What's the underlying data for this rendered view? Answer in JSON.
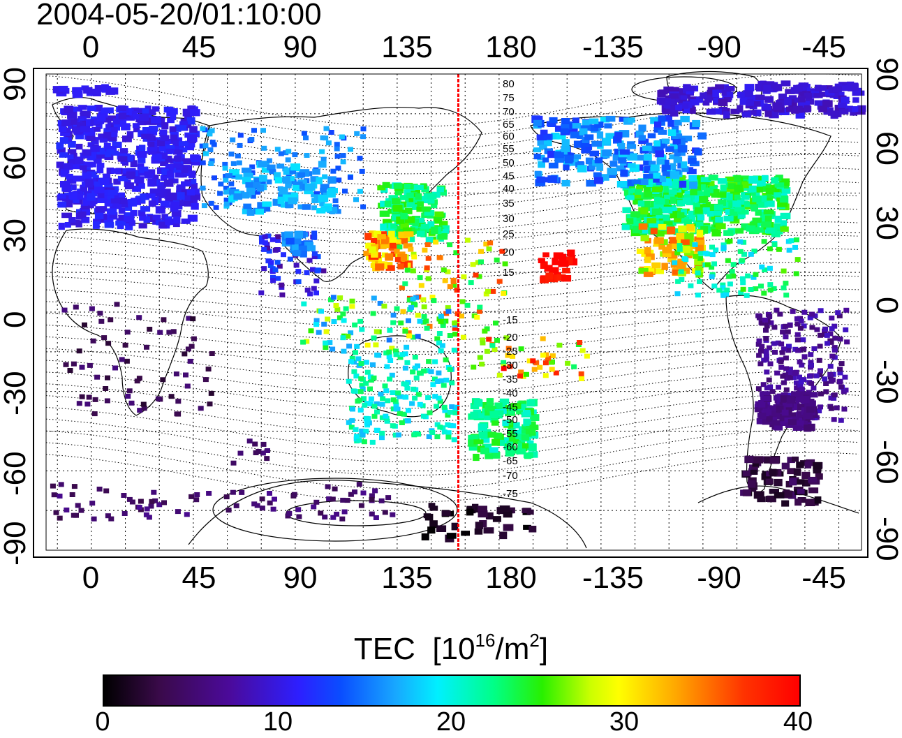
{
  "title": "2004-05-20/01:10:00",
  "lon_ticks": [
    "0",
    "45",
    "90",
    "135",
    "180",
    "-135",
    "-90",
    "-45"
  ],
  "lat_ticks": [
    "90",
    "60",
    "30",
    "0",
    "-30",
    "-60",
    "-90"
  ],
  "contour_labels": [
    "80",
    "75",
    "70",
    "65",
    "60",
    "55",
    "50",
    "45",
    "40",
    "35",
    "30",
    "25",
    "20",
    "15",
    "-15",
    "-20",
    "-25",
    "-30",
    "-35",
    "-40",
    "-45",
    "-50",
    "-55",
    "-60",
    "-65",
    "-70",
    "-75"
  ],
  "colorbar": {
    "label": "TEC",
    "unit_base": "[10",
    "unit_exp": "16",
    "unit_mid": "/m",
    "unit_exp2": "2",
    "unit_end": "]",
    "ticks": [
      "0",
      "10",
      "20",
      "30",
      "40"
    ],
    "range": [
      0,
      40
    ]
  },
  "marker_line_color": "#ff0000",
  "marker_line_lon": 162
}
